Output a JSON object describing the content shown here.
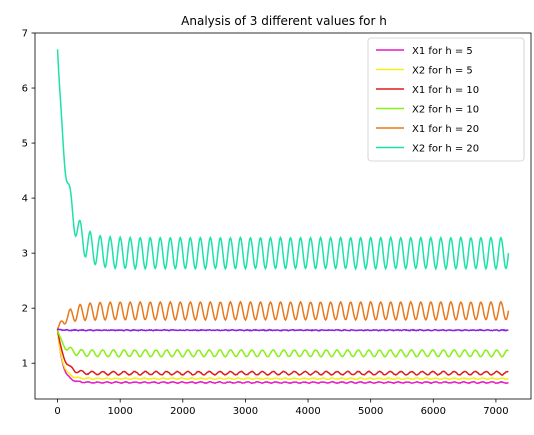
{
  "chart_data": {
    "type": "line",
    "title": "Analysis of 3 different values for h",
    "xlabel": "",
    "ylabel": "",
    "xlim": [
      -360,
      7560
    ],
    "ylim": [
      0.35,
      7.0
    ],
    "xticks": [
      0,
      1000,
      2000,
      3000,
      4000,
      5000,
      6000,
      7000
    ],
    "yticks": [
      1,
      2,
      3,
      4,
      5,
      6,
      7
    ],
    "grid": false,
    "legend_position": "top-right",
    "series": [
      {
        "name": "X1 for h = 5",
        "color": "#e61cc5",
        "start": 1.62,
        "final": 0.65,
        "tau": 80,
        "amplitude": 0.01,
        "period": 150,
        "noise": 0.01
      },
      {
        "name": "X2 for h = 5",
        "color": "#f4f018",
        "start": 1.6,
        "final": 0.72,
        "tau": 80,
        "amplitude": 0.01,
        "period": 150,
        "noise": 0.01
      },
      {
        "name": "X1 for h = 10",
        "color": "#dd1c1c",
        "start": 1.62,
        "final": 0.82,
        "tau": 100,
        "amplitude": 0.03,
        "period": 170,
        "noise": 0.01
      },
      {
        "name": "X2 for h = 10",
        "color": "#88f018",
        "start": 1.6,
        "final": 1.18,
        "tau": 100,
        "amplitude": 0.06,
        "period": 170,
        "noise": 0.01
      },
      {
        "name": "X1 for h = 20",
        "color": "#e8781c",
        "start": 1.62,
        "final": 1.95,
        "tau": 150,
        "amplitude": 0.16,
        "period": 160,
        "noise": 0.01
      },
      {
        "name": "X2 for h = 20",
        "color": "#1ce2a8",
        "start": 6.7,
        "final": 3.0,
        "tau": 150,
        "amplitude": 0.28,
        "period": 160,
        "noise": 0.01
      },
      {
        "name": "",
        "color": "#8a1ee6",
        "start": 1.62,
        "final": 1.6,
        "tau": 50,
        "amplitude": 0.005,
        "period": 120,
        "noise": 0.012
      }
    ]
  }
}
